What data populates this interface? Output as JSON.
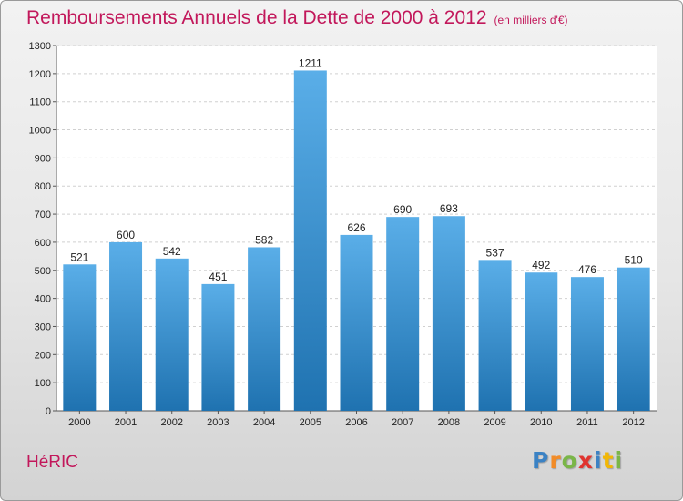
{
  "chart_data": {
    "type": "bar",
    "title": "Remboursements Annuels de la Dette de 2000 à 2012",
    "subtitle": "(en milliers d'€)",
    "categories": [
      "2000",
      "2001",
      "2002",
      "2003",
      "2004",
      "2005",
      "2006",
      "2007",
      "2008",
      "2009",
      "2010",
      "2011",
      "2012"
    ],
    "values": [
      521,
      600,
      542,
      451,
      582,
      1211,
      626,
      690,
      693,
      537,
      492,
      476,
      510
    ],
    "ylim": [
      0,
      1300
    ],
    "yticks": [
      0,
      100,
      200,
      300,
      400,
      500,
      600,
      700,
      800,
      900,
      1000,
      1100,
      1200,
      1300
    ],
    "grid": true,
    "bar_color_top": "#5aaee8",
    "bar_color_bottom": "#1f72b0"
  },
  "commune": "HéRIC",
  "logo": {
    "text": "Proxiti",
    "letters": [
      {
        "char": "P",
        "color": "#3b82c4"
      },
      {
        "char": "r",
        "color": "#f28c28"
      },
      {
        "char": "o",
        "color": "#7ab648"
      },
      {
        "char": "x",
        "color": "#e0342f"
      },
      {
        "char": "i",
        "color": "#3b82c4"
      },
      {
        "char": "t",
        "color": "#f2b705"
      },
      {
        "char": "i",
        "color": "#7ab648"
      }
    ]
  }
}
